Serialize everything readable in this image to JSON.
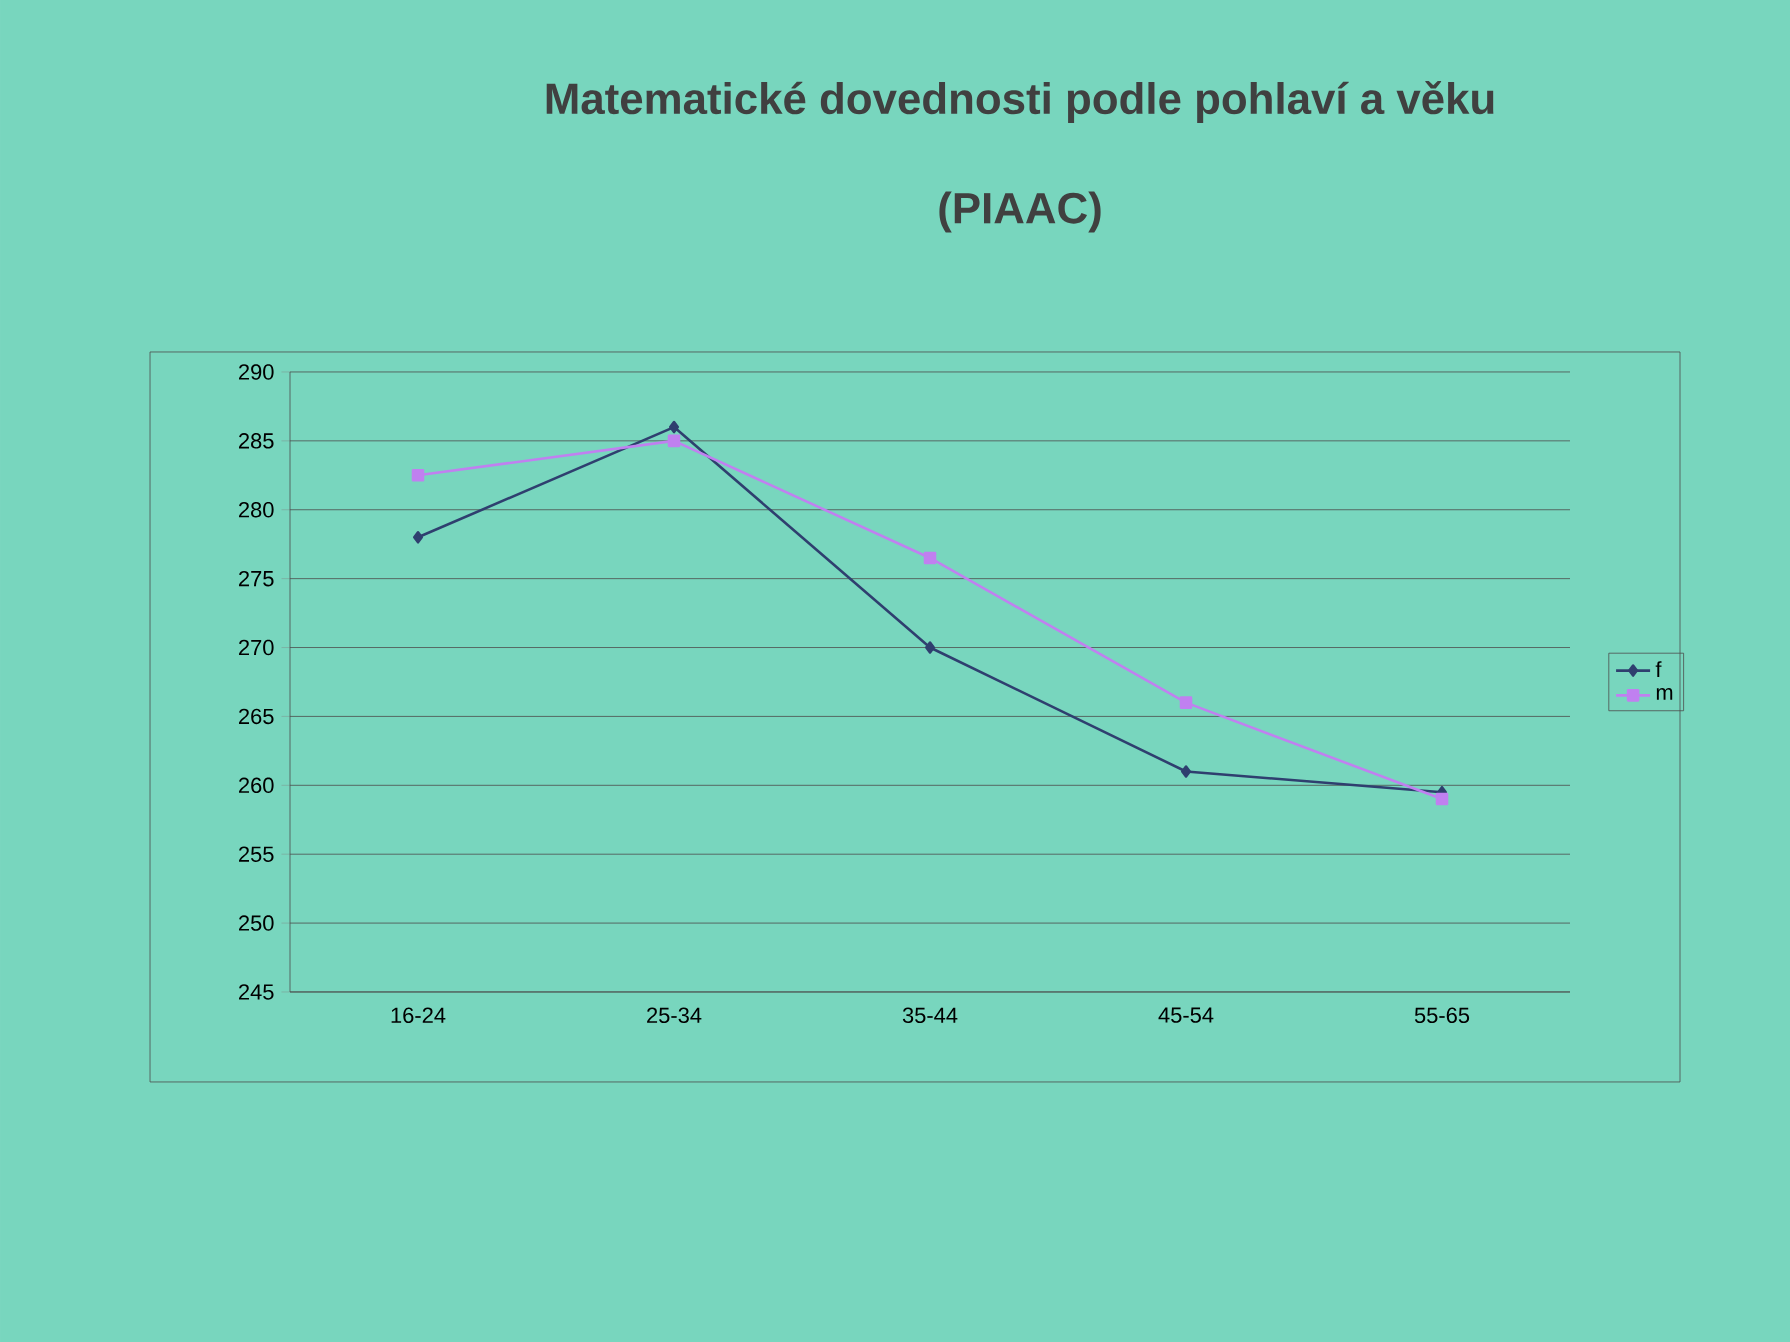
{
  "chart_data": {
    "type": "line",
    "title": "Matematické dovednosti podle pohlaví a věku",
    "subtitle": "(PIAAC)",
    "categories": [
      "16-24",
      "25-34",
      "35-44",
      "45-54",
      "55-65"
    ],
    "series": [
      {
        "name": "f",
        "color": "#2f3f6f",
        "marker": "diamond",
        "values": [
          278,
          286,
          270,
          261,
          259.5
        ]
      },
      {
        "name": "m",
        "color": "#c080f0",
        "marker": "square",
        "values": [
          282.5,
          285,
          276.5,
          266,
          259
        ]
      }
    ],
    "ylim": [
      245,
      290
    ],
    "yticks": [
      245,
      250,
      255,
      260,
      265,
      270,
      275,
      280,
      285,
      290
    ],
    "grid": "y",
    "legend": "right",
    "line_style": "solid"
  }
}
